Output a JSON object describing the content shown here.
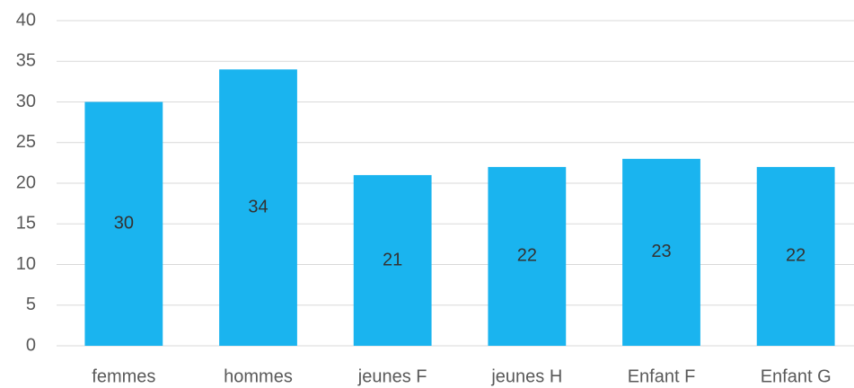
{
  "chart_data": {
    "type": "bar",
    "categories": [
      "femmes",
      "hommes",
      "jeunes F",
      "jeunes H",
      "Enfant F",
      "Enfant G"
    ],
    "values": [
      30,
      34,
      21,
      22,
      23,
      22
    ],
    "color": "#1ab4ef",
    "ylim": [
      0,
      40
    ],
    "yticks": [
      0,
      5,
      10,
      15,
      20,
      25,
      30,
      35,
      40
    ],
    "grid": true,
    "data_labels": true
  }
}
